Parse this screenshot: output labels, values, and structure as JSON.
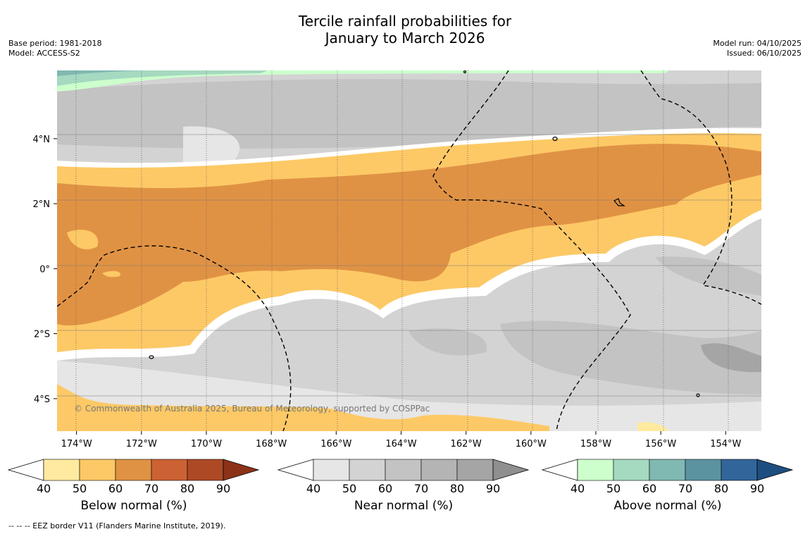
{
  "title": {
    "line1": "Tercile rainfall probabilities for",
    "line2": "January to March 2026"
  },
  "meta": {
    "base_period": "Base period: 1981-2018",
    "model": "Model: ACCESS-S2",
    "model_run": "Model run: 04/10/2025",
    "issued": "Issued: 06/10/2025"
  },
  "map": {
    "lon_range": [
      -174.6,
      -152.9
    ],
    "lat_range": [
      -5.0,
      6.1
    ],
    "x_ticks": [
      {
        "lon": -174,
        "label": "174°W"
      },
      {
        "lon": -172,
        "label": "172°W"
      },
      {
        "lon": -170,
        "label": "170°W"
      },
      {
        "lon": -168,
        "label": "168°W"
      },
      {
        "lon": -166,
        "label": "166°W"
      },
      {
        "lon": -164,
        "label": "164°W"
      },
      {
        "lon": -162,
        "label": "162°W"
      },
      {
        "lon": -160,
        "label": "160°W"
      },
      {
        "lon": -158,
        "label": "158°W"
      },
      {
        "lon": -156,
        "label": "156°W"
      },
      {
        "lon": -154,
        "label": "154°W"
      }
    ],
    "y_ticks": [
      {
        "lat": 4,
        "label": "4°N"
      },
      {
        "lat": 2,
        "label": "2°N"
      },
      {
        "lat": 0,
        "label": "0°"
      },
      {
        "lat": -2,
        "label": "2°S"
      },
      {
        "lat": -4,
        "label": "4°S"
      }
    ],
    "copyright": "© Commonwealth of Australia 2025, Bureau of Meteorology, supported by COSPPac"
  },
  "legend": {
    "below": {
      "label": "Below normal (%)",
      "ticks": [
        "40",
        "50",
        "60",
        "70",
        "80",
        "90"
      ],
      "colors": [
        "#ffeaa0",
        "#fdc966",
        "#e09244",
        "#cc6233",
        "#ae4925",
        "#8c3218"
      ]
    },
    "near": {
      "label": "Near normal (%)",
      "ticks": [
        "40",
        "50",
        "60",
        "70",
        "80",
        "90"
      ],
      "colors": [
        "#e6e6e6",
        "#d3d3d3",
        "#c3c3c3",
        "#b4b4b4",
        "#a5a5a5",
        "#8f8f8f"
      ]
    },
    "above": {
      "label": "Above normal (%)",
      "ticks": [
        "40",
        "50",
        "60",
        "70",
        "80",
        "90"
      ],
      "colors": [
        "#ccffcc",
        "#a5d9c0",
        "#80b8b2",
        "#5b93a0",
        "#32659a",
        "#1d4e80"
      ]
    }
  },
  "footer": {
    "eez_note": "--  --  -- EEZ border V11 (Flanders Marine Institute, 2019)."
  }
}
